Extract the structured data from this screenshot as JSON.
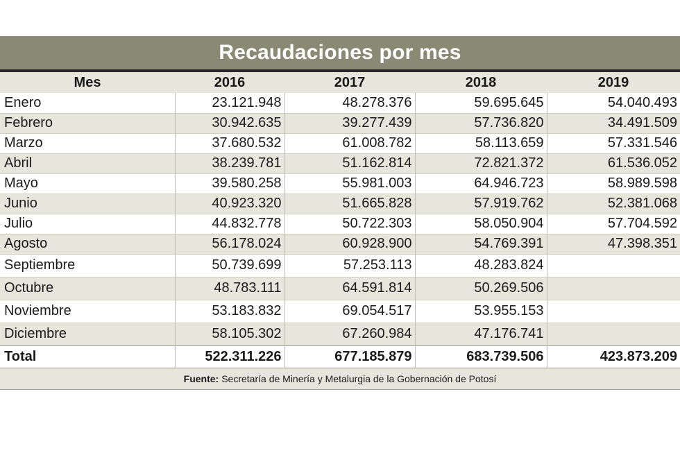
{
  "chart_data": {
    "type": "table",
    "title": "Recaudaciones por mes",
    "columns": [
      "Mes",
      "2016",
      "2017",
      "2018",
      "2019"
    ],
    "rows": [
      [
        "Enero",
        "23.121.948",
        "48.278.376",
        "59.695.645",
        "54.040.493"
      ],
      [
        "Febrero",
        "30.942.635",
        "39.277.439",
        "57.736.820",
        "34.491.509"
      ],
      [
        "Marzo",
        "37.680.532",
        "61.008.782",
        "58.113.659",
        "57.331.546"
      ],
      [
        "Abril",
        "38.239.781",
        "51.162.814",
        "72.821.372",
        "61.536.052"
      ],
      [
        "Mayo",
        "39.580.258",
        "55.981.003",
        "64.946.723",
        "58.989.598"
      ],
      [
        "Junio",
        "40.923.320",
        "51.665.828",
        "57.919.762",
        "52.381.068"
      ],
      [
        "Julio",
        "44.832.778",
        "50.722.303",
        "58.050.904",
        "57.704.592"
      ],
      [
        "Agosto",
        "56.178.024",
        "60.928.900",
        "54.769.391",
        "47.398.351"
      ],
      [
        "Septiembre",
        "50.739.699",
        "57.253.113",
        "48.283.824",
        ""
      ],
      [
        "Octubre",
        "48.783.111",
        "64.591.814",
        "50.269.506",
        ""
      ],
      [
        "Noviembre",
        "53.183.832",
        "69.054.517",
        "53.955.153",
        ""
      ],
      [
        "Diciembre",
        "58.105.302",
        "67.260.984",
        "47.176.741",
        ""
      ]
    ],
    "total": [
      "Total",
      "522.311.226",
      "677.185.879",
      "683.739.506",
      "423.873.209"
    ],
    "source_label": "Fuente:",
    "source_text": "Secretaría de Minería y Metalurgia de la Gobernación de Potosí"
  },
  "colors": {
    "title_band": "#8a8a74",
    "row_shade": "#e6e6dd",
    "title_rule": "#2a2a2a"
  }
}
